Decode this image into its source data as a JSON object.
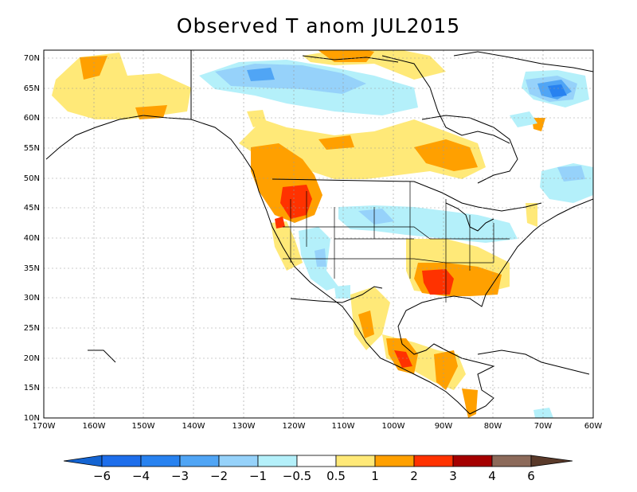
{
  "title": "Observed T anom JUL2015",
  "map": {
    "lon_range": [
      -170,
      -60
    ],
    "lat_range": [
      10,
      72
    ],
    "lat_labels": [
      "10N",
      "15N",
      "20N",
      "25N",
      "30N",
      "35N",
      "40N",
      "45N",
      "50N",
      "55N",
      "60N",
      "65N",
      "70N"
    ],
    "lon_labels": [
      "170W",
      "160W",
      "150W",
      "140W",
      "130W",
      "120W",
      "110W",
      "100W",
      "90W",
      "80W",
      "70W",
      "60W"
    ]
  },
  "colorbar": {
    "labels": [
      "−6",
      "−4",
      "−3",
      "−2",
      "−1",
      "−0.5",
      "0.5",
      "1",
      "2",
      "3",
      "4",
      "6"
    ],
    "colors": [
      "#1464d2",
      "#2882f0",
      "#50a5f5",
      "#96d2fa",
      "#b4f0fa",
      "#ffffff",
      "#ffe978",
      "#ffa000",
      "#ff3200",
      "#a50000",
      "#8c6a5a",
      "#5a3a2a"
    ],
    "bins": [
      {
        "range": "< -6",
        "color": "#1464d2"
      },
      {
        "range": "-6 to -4",
        "color": "#1e6eeb"
      },
      {
        "range": "-4 to -3",
        "color": "#2882f0"
      },
      {
        "range": "-3 to -2",
        "color": "#50a5f5"
      },
      {
        "range": "-2 to -1",
        "color": "#96d2fa"
      },
      {
        "range": "-1 to -0.5",
        "color": "#b4f0fa"
      },
      {
        "range": "-0.5 to 0.5",
        "color": "#ffffff"
      },
      {
        "range": "0.5 to 1",
        "color": "#ffe978"
      },
      {
        "range": "1 to 2",
        "color": "#ffa000"
      },
      {
        "range": "2 to 3",
        "color": "#ff3200"
      },
      {
        "range": "3 to 4",
        "color": "#a50000"
      },
      {
        "range": "4 to 6",
        "color": "#8c6a5a"
      },
      {
        "range": "> 6",
        "color": "#5a3a2a"
      }
    ]
  }
}
